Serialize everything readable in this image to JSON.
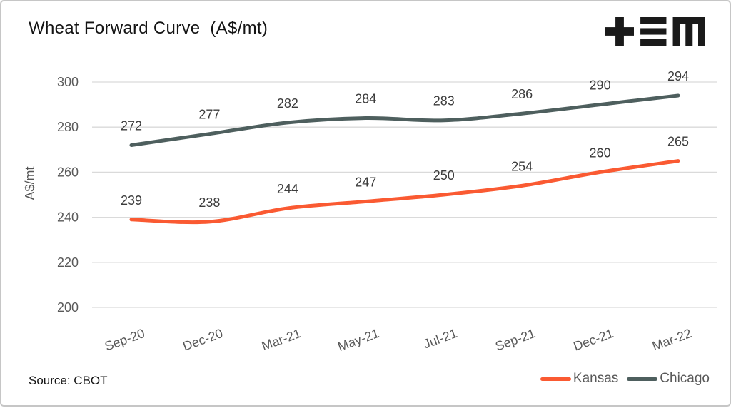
{
  "header": {
    "title": "Wheat Forward Curve  (A$/mt)",
    "logo_name": "tem-logo"
  },
  "chart_data": {
    "type": "line",
    "title": "Wheat Forward Curve (A$/mt)",
    "categories": [
      "Sep-20",
      "Dec-20",
      "Mar-21",
      "May-21",
      "Jul-21",
      "Sep-21",
      "Dec-21",
      "Mar-22"
    ],
    "series": [
      {
        "name": "Kansas",
        "color": "#FA5A32",
        "values": [
          239,
          238,
          244,
          247,
          250,
          254,
          260,
          265
        ]
      },
      {
        "name": "Chicago",
        "color": "#4E5F5E",
        "values": [
          272,
          277,
          282,
          284,
          283,
          286,
          290,
          294
        ]
      }
    ],
    "xlabel": "",
    "ylabel": "A$/mt",
    "ylim": [
      200,
      300
    ],
    "yticks": [
      200,
      220,
      240,
      260,
      280,
      300
    ],
    "grid": true,
    "grid_color": "#DADADA",
    "data_labels": true,
    "legend_position": "bottom-right"
  },
  "footer": {
    "source": "Source: CBOT"
  }
}
